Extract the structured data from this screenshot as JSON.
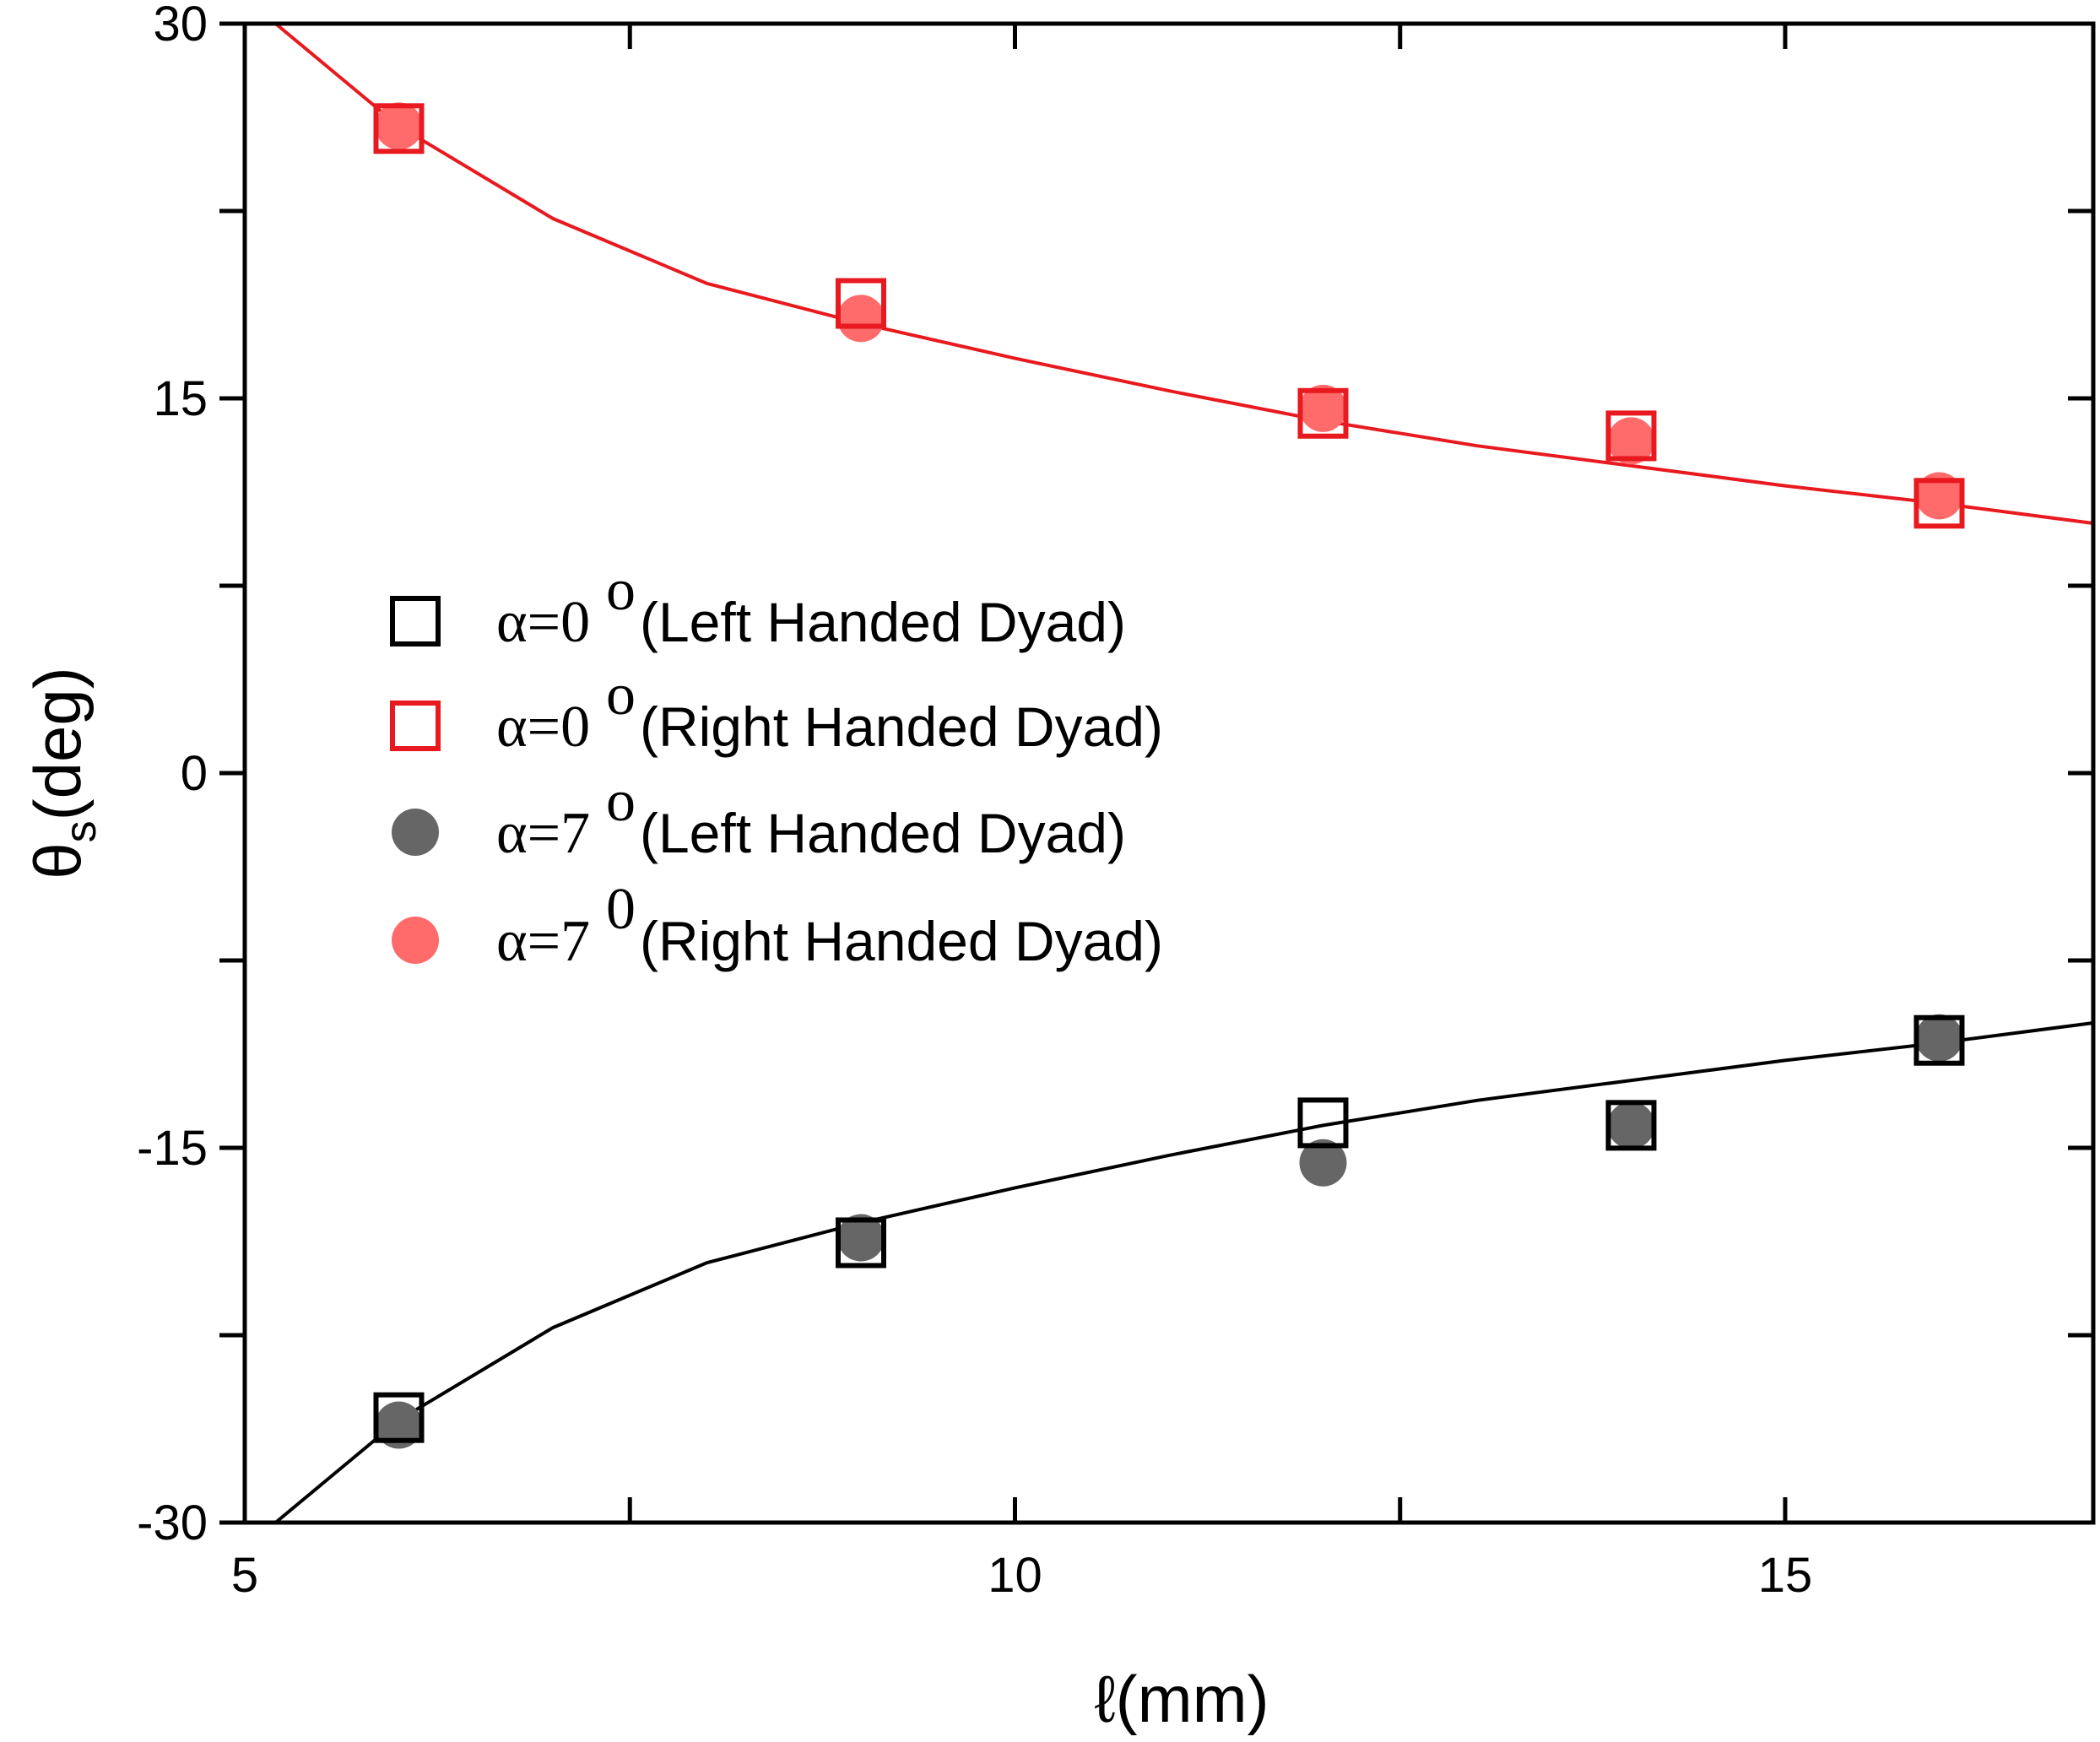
{
  "chart_data": {
    "type": "scatter",
    "xlabel": "ℓ(mm)",
    "ylabel_main": "θ",
    "ylabel_sub": "s",
    "ylabel_unit": "(deg)",
    "xlim": [
      5,
      17
    ],
    "ylim": [
      -30,
      30
    ],
    "xticks": [
      5,
      10,
      15
    ],
    "xtick_labels": [
      "5",
      "10",
      "15"
    ],
    "yticks": [
      -30,
      -15,
      0,
      15,
      30
    ],
    "ytick_labels": [
      "-30",
      "-15",
      "0",
      "15",
      "30"
    ],
    "legend_position": "middle-left",
    "series": [
      {
        "name": "α=0° (Left Handed Dyad)",
        "legend_greek": "α=0",
        "legend_sup": "o",
        "legend_text": "(Left Handed Dyad)",
        "marker": "open-square",
        "color": "#000000",
        "x": [
          6,
          9,
          12,
          14,
          16
        ],
        "y": [
          -25.8,
          -18.8,
          -14.0,
          -14.1,
          -10.7
        ]
      },
      {
        "name": "α=0° (Right Handed Dyad)",
        "legend_greek": "α=0",
        "legend_sup": "o",
        "legend_text": "(Right Handed Dyad)",
        "marker": "open-square",
        "color": "#e8191f",
        "x": [
          6,
          9,
          12,
          14,
          16
        ],
        "y": [
          25.8,
          18.8,
          14.4,
          13.5,
          10.8
        ]
      },
      {
        "name": "α=7° (Left Handed Dyad)",
        "legend_greek": "α=7",
        "legend_sup": "o",
        "legend_text": "(Left Handed Dyad)",
        "marker": "filled-circle",
        "color": "#666666",
        "x": [
          6,
          9,
          12,
          14,
          16
        ],
        "y": [
          -26.1,
          -18.6,
          -15.6,
          -14.1,
          -10.6
        ]
      },
      {
        "name": "α=7⁰ (Right Handed Dyad)",
        "legend_greek": "α=7",
        "legend_sup": "0",
        "legend_text": "(Right Handed Dyad)",
        "marker": "filled-circle",
        "color": "#ff6b6b",
        "x": [
          6,
          9,
          12,
          14,
          16
        ],
        "y": [
          25.9,
          18.2,
          14.6,
          13.3,
          11.1
        ]
      }
    ],
    "fit_curves": [
      {
        "name": "fit-right",
        "color": "#e8191f",
        "x": [
          5.2,
          6,
          7,
          8,
          9,
          10,
          11,
          12,
          13,
          14,
          15,
          16,
          17
        ],
        "y": [
          30.0,
          25.9,
          22.2,
          19.6,
          18.0,
          16.6,
          15.3,
          14.1,
          13.1,
          12.3,
          11.5,
          10.8,
          10.0
        ]
      },
      {
        "name": "fit-left",
        "color": "#000000",
        "x": [
          5.2,
          6,
          7,
          8,
          9,
          10,
          11,
          12,
          13,
          14,
          15,
          16,
          17
        ],
        "y": [
          -30.0,
          -25.9,
          -22.2,
          -19.6,
          -18.0,
          -16.6,
          -15.3,
          -14.1,
          -13.1,
          -12.3,
          -11.5,
          -10.8,
          -10.0
        ]
      }
    ]
  }
}
